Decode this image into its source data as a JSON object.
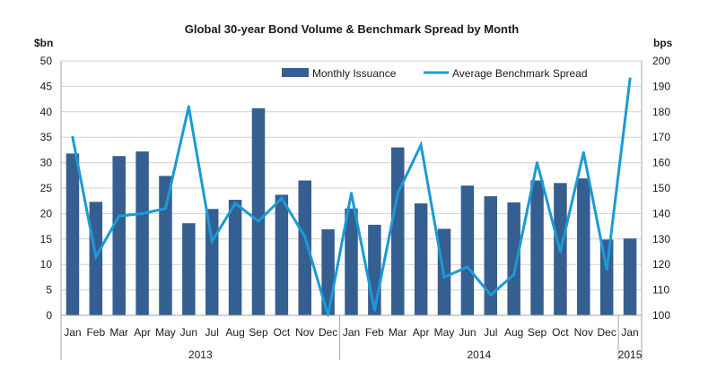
{
  "chart_data": {
    "type": "bar",
    "title": "Global 30-year Bond Volume & Benchmark Spread by Month",
    "left_unit": "$bn",
    "right_unit": "bps",
    "categories": [
      "Jan",
      "Feb",
      "Mar",
      "Apr",
      "May",
      "Jun",
      "Jul",
      "Aug",
      "Sep",
      "Oct",
      "Nov",
      "Dec",
      "Jan",
      "Feb",
      "Mar",
      "Apr",
      "May",
      "Jun",
      "Jul",
      "Aug",
      "Sep",
      "Oct",
      "Nov",
      "Dec",
      "Jan"
    ],
    "groups": [
      {
        "label": "2013",
        "start": 0,
        "end": 11
      },
      {
        "label": "2014",
        "start": 12,
        "end": 23
      },
      {
        "label": "2015",
        "start": 24,
        "end": 24
      }
    ],
    "series": [
      {
        "name": "Monthly Issuance",
        "type": "bar",
        "axis": "left",
        "color": "#355E91",
        "values": [
          31.8,
          22.3,
          31.3,
          32.2,
          27.4,
          18.1,
          20.9,
          22.7,
          40.7,
          23.7,
          26.5,
          16.9,
          21.0,
          17.8,
          33.0,
          22.0,
          17.0,
          25.5,
          23.4,
          22.2,
          26.5,
          26.0,
          26.9,
          14.9,
          15.1
        ]
      },
      {
        "name": "Average Benchmark Spread",
        "type": "line",
        "axis": "right",
        "color": "#1B9AD6",
        "values": [
          170,
          123,
          139,
          140,
          142,
          182,
          129,
          144,
          137,
          146,
          131,
          100,
          148,
          102,
          148,
          167,
          115,
          119,
          108,
          116,
          160,
          125,
          164,
          118,
          193
        ]
      }
    ],
    "ylim_left": [
      0,
      50
    ],
    "ylim_right": [
      100,
      200
    ],
    "yticks_left": [
      "0",
      "5",
      "10",
      "15",
      "20",
      "25",
      "30",
      "35",
      "40",
      "45",
      "50"
    ],
    "yticks_right": [
      "100",
      "110",
      "120",
      "130",
      "140",
      "150",
      "160",
      "170",
      "180",
      "190",
      "200"
    ],
    "grid": true,
    "legend_position": "top-right"
  }
}
